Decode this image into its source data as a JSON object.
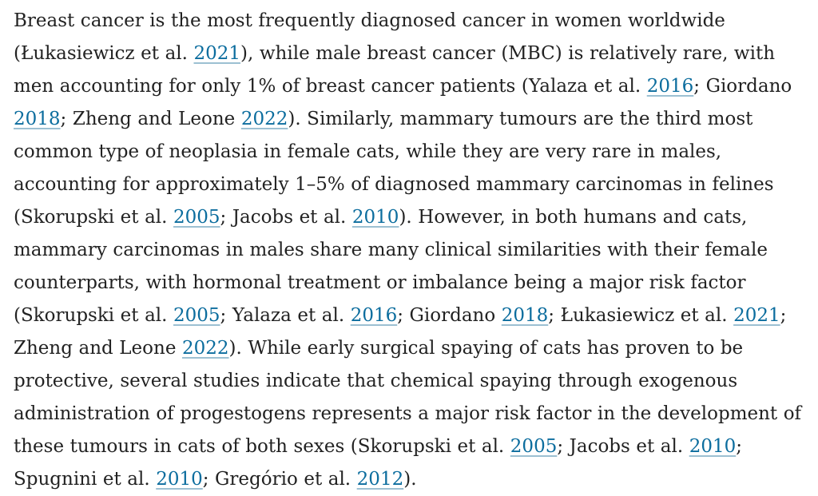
{
  "page": {
    "background_color": "#ffffff",
    "text_color": "#222222",
    "link_color": "#0c6d9e",
    "link_underline_color": "#9cc0d2"
  },
  "paragraph": {
    "segments": [
      {
        "type": "text",
        "content": "Breast cancer is the most frequently diagnosed cancer in women worldwide (Łukasiewicz et al. "
      },
      {
        "type": "link",
        "content": "2021"
      },
      {
        "type": "text",
        "content": "), while male breast cancer (MBC) is relatively rare, with men accounting for only 1% of breast cancer patients (Yalaza et al. "
      },
      {
        "type": "link",
        "content": "2016"
      },
      {
        "type": "text",
        "content": "; Giordano "
      },
      {
        "type": "link",
        "content": "2018"
      },
      {
        "type": "text",
        "content": "; Zheng and Leone "
      },
      {
        "type": "link",
        "content": "2022"
      },
      {
        "type": "text",
        "content": "). Similarly, mammary tumours are the third most common type of neoplasia in female cats, while they are very rare in males, accounting for approximately 1–5% of diagnosed mammary carcinomas in felines (Skorupski et al. "
      },
      {
        "type": "link",
        "content": "2005"
      },
      {
        "type": "text",
        "content": "; Jacobs et al. "
      },
      {
        "type": "link",
        "content": "2010"
      },
      {
        "type": "text",
        "content": "). However, in both humans and cats, mammary carcinomas in males share many clinical similarities with their female counterparts, with hormonal treatment or imbalance being a major risk factor (Skorupski et al. "
      },
      {
        "type": "link",
        "content": "2005"
      },
      {
        "type": "text",
        "content": "; Yalaza et al. "
      },
      {
        "type": "link",
        "content": "2016"
      },
      {
        "type": "text",
        "content": "; Giordano "
      },
      {
        "type": "link",
        "content": "2018"
      },
      {
        "type": "text",
        "content": "; Łukasiewicz et al. "
      },
      {
        "type": "link",
        "content": "2021"
      },
      {
        "type": "text",
        "content": "; Zheng and Leone "
      },
      {
        "type": "link",
        "content": "2022"
      },
      {
        "type": "text",
        "content": "). While early surgical spaying of cats has proven to be protective, several studies indicate that chemical spaying through exogenous administration of progestogens represents a major risk factor in the development of these tumours in cats of both sexes (Skorupski et al. "
      },
      {
        "type": "link",
        "content": "2005"
      },
      {
        "type": "text",
        "content": "; Jacobs et al. "
      },
      {
        "type": "link",
        "content": "2010"
      },
      {
        "type": "text",
        "content": "; Spugnini et al. "
      },
      {
        "type": "link",
        "content": "2010"
      },
      {
        "type": "text",
        "content": "; Gregório et al. "
      },
      {
        "type": "link",
        "content": "2012"
      },
      {
        "type": "text",
        "content": ")."
      }
    ]
  }
}
